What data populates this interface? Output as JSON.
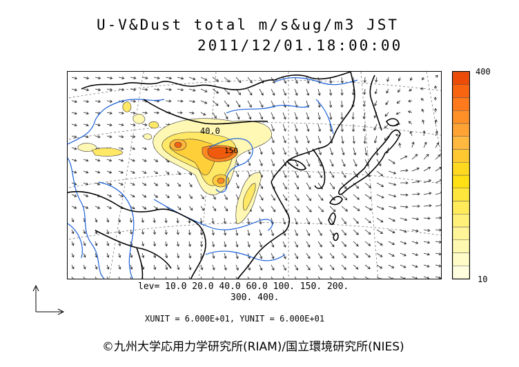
{
  "title": {
    "line1": "U-V&Dust total m/s&ug/m3 JST",
    "line2": "2011/12/01.18:00:00"
  },
  "map": {
    "contour_labels": [
      "40.0",
      "150"
    ],
    "colors": {
      "coast": "#000000",
      "rivers": "#1a5fd8",
      "vectors": "#222222",
      "grid": "#7a7a7a"
    }
  },
  "colorbar": {
    "max_label": "400",
    "min_label": "10",
    "colors": [
      "#ffffe0",
      "#fffcc8",
      "#fff8b0",
      "#fff598",
      "#fff07a",
      "#ffeb5a",
      "#ffe63c",
      "#ffe014",
      "#ffd820",
      "#ffc830",
      "#ffb840",
      "#ffa434",
      "#ff9028",
      "#ff7a1c",
      "#f86410",
      "#ec4c08"
    ]
  },
  "levels": {
    "line1": "lev= 10.0 20.0 40.0 60.0 100. 150. 200.",
    "line2": "300. 400."
  },
  "units": "XUNIT = 6.000E+01, YUNIT = 6.000E+01",
  "credit": "©九州大学応用力学研究所(RIAM)/国立環境研究所(NIES)"
}
